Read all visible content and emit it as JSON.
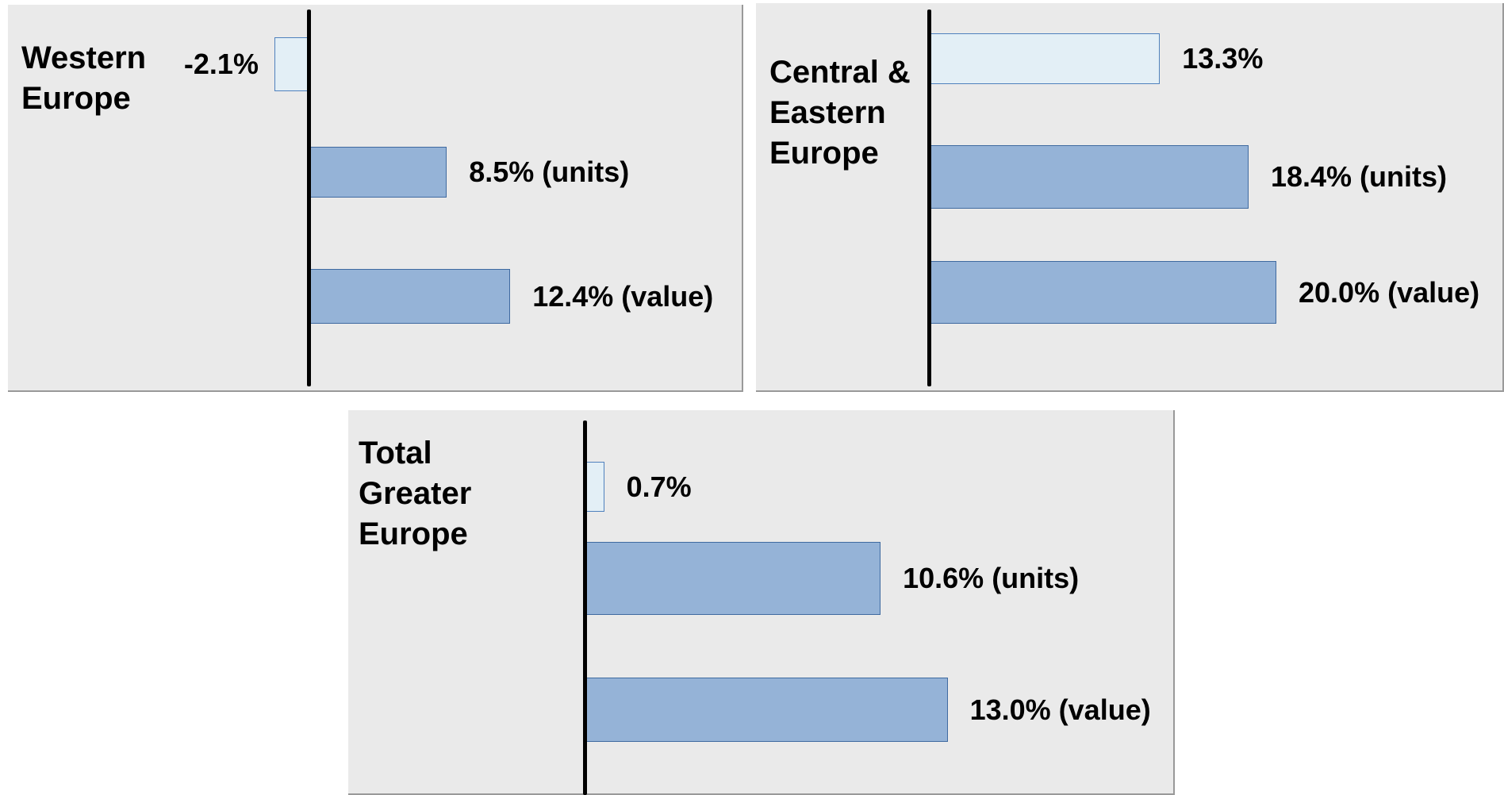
{
  "chart_data": [
    {
      "type": "bar",
      "orientation": "horizontal",
      "title": "Western Europe",
      "values": [
        -2.1,
        8.5,
        12.4
      ],
      "value_labels": [
        "-2.1%",
        "8.5% (units)",
        "12.4% (value)"
      ],
      "colors": [
        "#e3eff6",
        "#95b3d7",
        "#95b3d7"
      ]
    },
    {
      "type": "bar",
      "orientation": "horizontal",
      "title": "Central & Eastern Europe",
      "values": [
        13.3,
        18.4,
        20.0
      ],
      "value_labels": [
        "13.3%",
        "18.4% (units)",
        "20.0% (value)"
      ],
      "colors": [
        "#e3eff6",
        "#95b3d7",
        "#95b3d7"
      ]
    },
    {
      "type": "bar",
      "orientation": "horizontal",
      "title": "Total Greater Europe",
      "values": [
        0.7,
        10.6,
        13.0
      ],
      "value_labels": [
        "0.7%",
        "10.6% (units)",
        "13.0% (value)"
      ],
      "colors": [
        "#e3eff6",
        "#95b3d7",
        "#95b3d7"
      ]
    }
  ]
}
